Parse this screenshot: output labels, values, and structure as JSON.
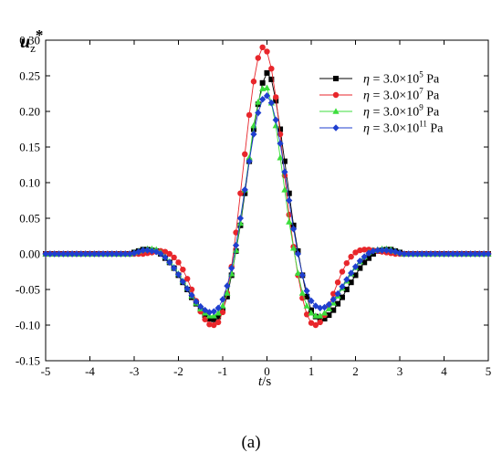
{
  "chart_data": {
    "type": "line",
    "ylabel": "u",
    "ylabel_sub": "z",
    "ylabel_sup": "*",
    "xlabel_italic": "t",
    "xlabel_rest": "/s",
    "xlim": [
      -5,
      5
    ],
    "ylim": [
      -0.15,
      0.3
    ],
    "xticks": [
      -5,
      -4,
      -3,
      -2,
      -1,
      0,
      1,
      2,
      3,
      4,
      5
    ],
    "yticks": [
      -0.15,
      -0.1,
      -0.05,
      0.0,
      0.05,
      0.1,
      0.15,
      0.2,
      0.25,
      0.3
    ],
    "ytick_labels": [
      "-0.15",
      "-0.10",
      "-0.05",
      "0.00",
      "0.05",
      "0.10",
      "0.15",
      "0.20",
      "0.25",
      "0.30"
    ],
    "legend_position": "top-right",
    "series": [
      {
        "name": "η = 3.0×10^5 Pa",
        "label_eta": "η",
        "label_eq": "= 3.0×10",
        "label_exp": "5",
        "label_unit": "Pa",
        "color": "#000000",
        "marker": "square",
        "x": [
          -5.0,
          -4.9,
          -4.8,
          -4.7,
          -4.6,
          -4.5,
          -4.4,
          -4.3,
          -4.2,
          -4.1,
          -4.0,
          -3.9,
          -3.8,
          -3.7,
          -3.6,
          -3.5,
          -3.4,
          -3.3,
          -3.2,
          -3.1,
          -3.0,
          -2.9,
          -2.8,
          -2.7,
          -2.6,
          -2.5,
          -2.4,
          -2.3,
          -2.2,
          -2.1,
          -2.0,
          -1.9,
          -1.8,
          -1.7,
          -1.6,
          -1.5,
          -1.4,
          -1.3,
          -1.2,
          -1.1,
          -1.0,
          -0.9,
          -0.8,
          -0.7,
          -0.6,
          -0.5,
          -0.4,
          -0.3,
          -0.2,
          -0.1,
          0.0,
          0.1,
          0.2,
          0.3,
          0.4,
          0.5,
          0.6,
          0.7,
          0.8,
          0.9,
          1.0,
          1.1,
          1.2,
          1.3,
          1.4,
          1.5,
          1.6,
          1.7,
          1.8,
          1.9,
          2.0,
          2.1,
          2.2,
          2.3,
          2.4,
          2.5,
          2.6,
          2.7,
          2.8,
          2.9,
          3.0,
          3.1,
          3.2,
          3.3,
          3.4,
          3.5,
          3.6,
          3.7,
          3.8,
          3.9,
          4.0,
          4.1,
          4.2,
          4.3,
          4.4,
          4.5,
          4.6,
          4.7,
          4.8,
          4.9,
          5.0
        ],
        "y": [
          0.0,
          0.0,
          0.0,
          0.0,
          0.0,
          0.0,
          0.0,
          0.0,
          0.0,
          0.0,
          0.0,
          0.0,
          0.0,
          0.0,
          0.0,
          0.0,
          0.0,
          0.0,
          0.0,
          0.0,
          0.002,
          0.004,
          0.006,
          0.006,
          0.005,
          0.004,
          0.0,
          -0.006,
          -0.012,
          -0.02,
          -0.03,
          -0.04,
          -0.05,
          -0.061,
          -0.07,
          -0.079,
          -0.086,
          -0.091,
          -0.092,
          -0.088,
          -0.079,
          -0.06,
          -0.03,
          0.004,
          0.04,
          0.085,
          0.13,
          0.175,
          0.21,
          0.24,
          0.254,
          0.245,
          0.215,
          0.175,
          0.13,
          0.085,
          0.04,
          0.004,
          -0.03,
          -0.06,
          -0.079,
          -0.088,
          -0.092,
          -0.091,
          -0.086,
          -0.079,
          -0.07,
          -0.061,
          -0.05,
          -0.04,
          -0.03,
          -0.02,
          -0.012,
          -0.006,
          0.0,
          0.004,
          0.005,
          0.006,
          0.006,
          0.004,
          0.002,
          0.0,
          0.0,
          0.0,
          0.0,
          0.0,
          0.0,
          0.0,
          0.0,
          0.0,
          0.0,
          0.0,
          0.0,
          0.0,
          0.0,
          0.0,
          0.0,
          0.0,
          0.0,
          0.0,
          0.0
        ]
      },
      {
        "name": "η = 3.0×10^7 Pa",
        "label_eta": "η",
        "label_eq": "= 3.0×10",
        "label_exp": "7",
        "label_unit": "Pa",
        "color": "#e8262b",
        "marker": "circle",
        "x": [
          -5.0,
          -4.9,
          -4.8,
          -4.7,
          -4.6,
          -4.5,
          -4.4,
          -4.3,
          -4.2,
          -4.1,
          -4.0,
          -3.9,
          -3.8,
          -3.7,
          -3.6,
          -3.5,
          -3.4,
          -3.3,
          -3.2,
          -3.1,
          -3.0,
          -2.9,
          -2.8,
          -2.7,
          -2.6,
          -2.5,
          -2.4,
          -2.3,
          -2.2,
          -2.1,
          -2.0,
          -1.9,
          -1.8,
          -1.7,
          -1.6,
          -1.5,
          -1.4,
          -1.3,
          -1.2,
          -1.1,
          -1.0,
          -0.9,
          -0.8,
          -0.7,
          -0.6,
          -0.5,
          -0.4,
          -0.3,
          -0.2,
          -0.1,
          0.0,
          0.1,
          0.2,
          0.3,
          0.4,
          0.5,
          0.6,
          0.7,
          0.8,
          0.9,
          1.0,
          1.1,
          1.2,
          1.3,
          1.4,
          1.5,
          1.6,
          1.7,
          1.8,
          1.9,
          2.0,
          2.1,
          2.2,
          2.3,
          2.4,
          2.5,
          2.6,
          2.7,
          2.8,
          2.9,
          3.0,
          3.1,
          3.2,
          3.3,
          3.4,
          3.5,
          3.6,
          3.7,
          3.8,
          3.9,
          4.0,
          4.1,
          4.2,
          4.3,
          4.4,
          4.5,
          4.6,
          4.7,
          4.8,
          4.9,
          5.0
        ],
        "y": [
          0.0,
          0.0,
          0.0,
          0.0,
          0.0,
          0.0,
          0.0,
          0.0,
          0.0,
          0.0,
          0.0,
          0.0,
          0.0,
          0.0,
          0.0,
          0.0,
          0.0,
          0.0,
          0.0,
          0.0,
          0.0,
          0.0,
          0.0,
          0.001,
          0.002,
          0.003,
          0.004,
          0.003,
          0.0,
          -0.005,
          -0.012,
          -0.022,
          -0.035,
          -0.05,
          -0.066,
          -0.081,
          -0.092,
          -0.099,
          -0.1,
          -0.096,
          -0.082,
          -0.055,
          -0.018,
          0.03,
          0.085,
          0.14,
          0.195,
          0.242,
          0.275,
          0.29,
          0.284,
          0.26,
          0.22,
          0.168,
          0.11,
          0.055,
          0.01,
          -0.03,
          -0.062,
          -0.085,
          -0.097,
          -0.1,
          -0.096,
          -0.086,
          -0.072,
          -0.056,
          -0.04,
          -0.025,
          -0.013,
          -0.004,
          0.002,
          0.005,
          0.006,
          0.006,
          0.005,
          0.004,
          0.003,
          0.002,
          0.001,
          0.0,
          0.0,
          0.0,
          0.0,
          0.0,
          0.0,
          0.0,
          0.0,
          0.0,
          0.0,
          0.0,
          0.0,
          0.0,
          0.0,
          0.0,
          0.0,
          0.0,
          0.0,
          0.0,
          0.0,
          0.0,
          0.0
        ]
      },
      {
        "name": "η = 3.0×10^9 Pa",
        "label_eta": "η",
        "label_eq": "= 3.0×10",
        "label_exp": "9",
        "label_unit": "Pa",
        "color": "#3cde3c",
        "marker": "triangle",
        "x": [
          -5.0,
          -4.9,
          -4.8,
          -4.7,
          -4.6,
          -4.5,
          -4.4,
          -4.3,
          -4.2,
          -4.1,
          -4.0,
          -3.9,
          -3.8,
          -3.7,
          -3.6,
          -3.5,
          -3.4,
          -3.3,
          -3.2,
          -3.1,
          -3.0,
          -2.9,
          -2.8,
          -2.7,
          -2.6,
          -2.5,
          -2.4,
          -2.3,
          -2.2,
          -2.1,
          -2.0,
          -1.9,
          -1.8,
          -1.7,
          -1.6,
          -1.5,
          -1.4,
          -1.3,
          -1.2,
          -1.1,
          -1.0,
          -0.9,
          -0.8,
          -0.7,
          -0.6,
          -0.5,
          -0.4,
          -0.3,
          -0.2,
          -0.1,
          0.0,
          0.1,
          0.2,
          0.3,
          0.4,
          0.5,
          0.6,
          0.7,
          0.8,
          0.9,
          1.0,
          1.1,
          1.2,
          1.3,
          1.4,
          1.5,
          1.6,
          1.7,
          1.8,
          1.9,
          2.0,
          2.1,
          2.2,
          2.3,
          2.4,
          2.5,
          2.6,
          2.7,
          2.8,
          2.9,
          3.0,
          3.1,
          3.2,
          3.3,
          3.4,
          3.5,
          3.6,
          3.7,
          3.8,
          3.9,
          4.0,
          4.1,
          4.2,
          4.3,
          4.4,
          4.5,
          4.6,
          4.7,
          4.8,
          4.9,
          5.0
        ],
        "y": [
          0.0,
          0.0,
          0.0,
          0.0,
          0.0,
          0.0,
          0.0,
          0.0,
          0.0,
          0.0,
          0.0,
          0.0,
          0.0,
          0.0,
          0.0,
          0.0,
          0.0,
          0.0,
          0.0,
          0.0,
          0.002,
          0.004,
          0.006,
          0.007,
          0.007,
          0.006,
          0.002,
          -0.004,
          -0.011,
          -0.019,
          -0.028,
          -0.038,
          -0.048,
          -0.059,
          -0.069,
          -0.077,
          -0.083,
          -0.087,
          -0.087,
          -0.083,
          -0.073,
          -0.055,
          -0.028,
          0.005,
          0.043,
          0.09,
          0.135,
          0.18,
          0.213,
          0.232,
          0.233,
          0.212,
          0.18,
          0.135,
          0.09,
          0.045,
          0.008,
          -0.027,
          -0.055,
          -0.073,
          -0.083,
          -0.087,
          -0.087,
          -0.083,
          -0.077,
          -0.069,
          -0.059,
          -0.048,
          -0.038,
          -0.028,
          -0.019,
          -0.011,
          -0.004,
          0.002,
          0.005,
          0.006,
          0.007,
          0.007,
          0.006,
          0.004,
          0.002,
          0.0,
          0.0,
          0.0,
          0.0,
          0.0,
          0.0,
          0.0,
          0.0,
          0.0,
          0.0,
          0.0,
          0.0,
          0.0,
          0.0,
          0.0,
          0.0,
          0.0,
          0.0,
          0.0,
          0.0
        ]
      },
      {
        "name": "η = 3.0×10^11 Pa",
        "label_eta": "η",
        "label_eq": "= 3.0×10",
        "label_exp": "11",
        "label_unit": "Pa",
        "color": "#1f3fcf",
        "marker": "diamond",
        "x": [
          -5.0,
          -4.9,
          -4.8,
          -4.7,
          -4.6,
          -4.5,
          -4.4,
          -4.3,
          -4.2,
          -4.1,
          -4.0,
          -3.9,
          -3.8,
          -3.7,
          -3.6,
          -3.5,
          -3.4,
          -3.3,
          -3.2,
          -3.1,
          -3.0,
          -2.9,
          -2.8,
          -2.7,
          -2.6,
          -2.5,
          -2.4,
          -2.3,
          -2.2,
          -2.1,
          -2.0,
          -1.9,
          -1.8,
          -1.7,
          -1.6,
          -1.5,
          -1.4,
          -1.3,
          -1.2,
          -1.1,
          -1.0,
          -0.9,
          -0.8,
          -0.7,
          -0.6,
          -0.5,
          -0.4,
          -0.3,
          -0.2,
          -0.1,
          0.0,
          0.1,
          0.2,
          0.3,
          0.4,
          0.5,
          0.6,
          0.7,
          0.8,
          0.9,
          1.0,
          1.1,
          1.2,
          1.3,
          1.4,
          1.5,
          1.6,
          1.7,
          1.8,
          1.9,
          2.0,
          2.1,
          2.2,
          2.3,
          2.4,
          2.5,
          2.6,
          2.7,
          2.8,
          2.9,
          3.0,
          3.1,
          3.2,
          3.3,
          3.4,
          3.5,
          3.6,
          3.7,
          3.8,
          3.9,
          4.0,
          4.1,
          4.2,
          4.3,
          4.4,
          4.5,
          4.6,
          4.7,
          4.8,
          4.9,
          5.0
        ],
        "y": [
          0.0,
          0.0,
          0.0,
          0.0,
          0.0,
          0.0,
          0.0,
          0.0,
          0.0,
          0.0,
          0.0,
          0.0,
          0.0,
          0.0,
          0.0,
          0.0,
          0.0,
          0.0,
          0.0,
          0.0,
          0.001,
          0.003,
          0.005,
          0.005,
          0.004,
          0.003,
          0.0,
          -0.005,
          -0.012,
          -0.02,
          -0.029,
          -0.039,
          -0.049,
          -0.058,
          -0.067,
          -0.074,
          -0.079,
          -0.082,
          -0.081,
          -0.076,
          -0.064,
          -0.045,
          -0.02,
          0.012,
          0.05,
          0.09,
          0.13,
          0.168,
          0.198,
          0.217,
          0.222,
          0.212,
          0.188,
          0.155,
          0.115,
          0.075,
          0.035,
          0.0,
          -0.03,
          -0.052,
          -0.066,
          -0.073,
          -0.076,
          -0.075,
          -0.071,
          -0.064,
          -0.056,
          -0.046,
          -0.036,
          -0.027,
          -0.018,
          -0.01,
          -0.004,
          0.001,
          0.004,
          0.005,
          0.005,
          0.005,
          0.004,
          0.003,
          0.001,
          0.0,
          0.0,
          0.0,
          0.0,
          0.0,
          0.0,
          0.0,
          0.0,
          0.0,
          0.0,
          0.0,
          0.0,
          0.0,
          0.0,
          0.0,
          0.0,
          0.0,
          0.0,
          0.0,
          0.0
        ]
      }
    ]
  },
  "caption": "(a)"
}
